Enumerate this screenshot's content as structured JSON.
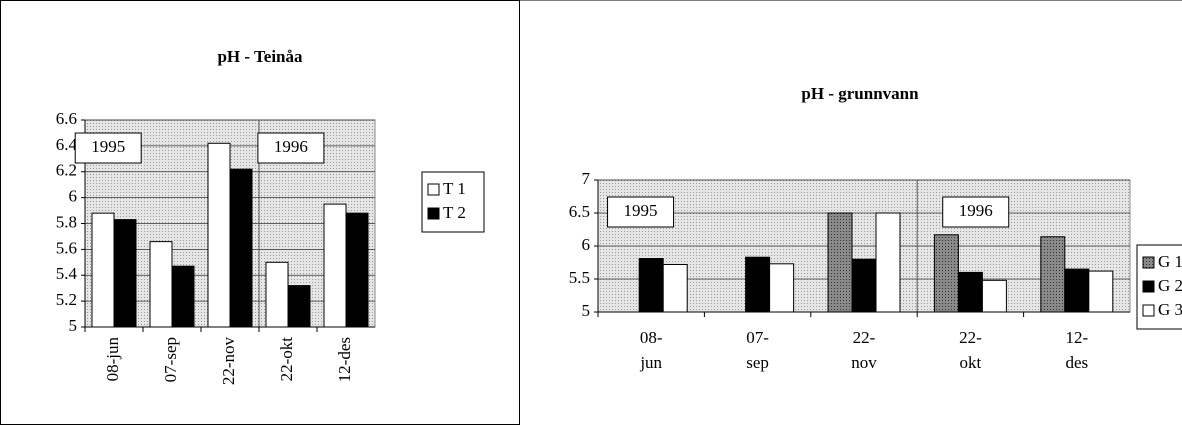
{
  "chart_data": [
    {
      "type": "bar",
      "title": "pH - Teinåa",
      "categories": [
        [
          "08-jun"
        ],
        [
          "07-sep"
        ],
        [
          "22-nov"
        ],
        [
          "22-okt"
        ],
        [
          "12-des"
        ]
      ],
      "series": [
        {
          "name": "T 1",
          "color": "#ffffff",
          "values": [
            5.88,
            5.66,
            6.42,
            5.5,
            5.95
          ]
        },
        {
          "name": "T 2",
          "color": "#000000",
          "values": [
            5.83,
            5.47,
            6.22,
            5.32,
            5.88
          ]
        }
      ],
      "ylim": [
        5,
        6.6
      ],
      "yticks": [
        5,
        5.2,
        5.4,
        5.6,
        5.8,
        6,
        6.2,
        6.4,
        6.6
      ],
      "annotations": [
        "1995",
        "1996"
      ],
      "grid": true
    },
    {
      "type": "bar",
      "title": "pH - grunnvann",
      "categories": [
        [
          "08-",
          "jun"
        ],
        [
          "07-",
          "sep"
        ],
        [
          "22-",
          "nov"
        ],
        [
          "22-",
          "okt"
        ],
        [
          "12-",
          "des"
        ]
      ],
      "series": [
        {
          "name": "G 1",
          "color": "#6e6e6e",
          "values": [
            null,
            null,
            6.5,
            6.17,
            6.14
          ]
        },
        {
          "name": "G 2",
          "color": "#000000",
          "values": [
            5.81,
            5.83,
            5.8,
            5.6,
            5.65
          ]
        },
        {
          "name": "G 3",
          "color": "#ffffff",
          "values": [
            5.72,
            5.73,
            6.5,
            5.48,
            5.62
          ]
        }
      ],
      "ylim": [
        5,
        7
      ],
      "yticks": [
        5,
        5.5,
        6,
        6.5,
        7
      ],
      "annotations": [
        "1995",
        "1996"
      ],
      "grid": true
    }
  ]
}
